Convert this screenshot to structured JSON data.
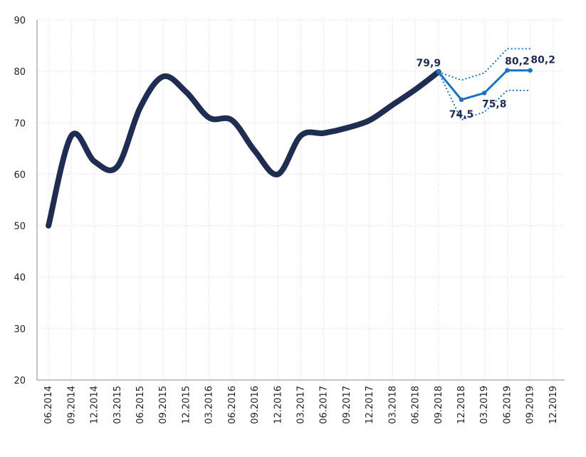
{
  "chart_data": {
    "type": "line",
    "title": "",
    "xlabel": "",
    "ylabel": "",
    "ylim": [
      20,
      90
    ],
    "yticks": [
      20,
      30,
      40,
      50,
      60,
      70,
      80,
      90
    ],
    "grid": true,
    "categories": [
      "06.2014",
      "09.2014",
      "12.2014",
      "03.2015",
      "06.2015",
      "09.2015",
      "12.2015",
      "03.2016",
      "06.2016",
      "09.2016",
      "12.2016",
      "03.2017",
      "06.2017",
      "09.2017",
      "12.2017",
      "03.2018",
      "06.2018",
      "09.2018",
      "12.2018",
      "03.2019",
      "06.2019",
      "09.2019",
      "12.2019"
    ],
    "series": [
      {
        "role": "actual",
        "color": "#1f2d52",
        "style": "thick-smooth",
        "values": [
          50,
          67.5,
          62.5,
          61.5,
          73,
          79,
          76,
          71,
          70.5,
          64.5,
          60,
          67.5,
          68,
          69,
          70.5,
          73.5,
          76.5,
          79.9,
          null,
          null,
          null,
          null,
          null
        ]
      },
      {
        "role": "forecast",
        "color": "#1a73c2",
        "style": "solid-markers",
        "values": [
          null,
          null,
          null,
          null,
          null,
          null,
          null,
          null,
          null,
          null,
          null,
          null,
          null,
          null,
          null,
          null,
          null,
          79.9,
          74.5,
          75.8,
          80.2,
          80.2,
          null
        ]
      },
      {
        "role": "forecast-upper",
        "color": "#1a73c2",
        "style": "dotted",
        "values": [
          null,
          null,
          null,
          null,
          null,
          null,
          null,
          null,
          null,
          null,
          null,
          null,
          null,
          null,
          null,
          null,
          null,
          79.9,
          78.3,
          79.7,
          84.4,
          84.4,
          null
        ]
      },
      {
        "role": "forecast-lower",
        "color": "#1a73c2",
        "style": "dotted",
        "values": [
          null,
          null,
          null,
          null,
          null,
          null,
          null,
          null,
          null,
          null,
          null,
          null,
          null,
          null,
          null,
          null,
          null,
          79.9,
          70.6,
          72.1,
          76.3,
          76.3,
          null
        ]
      }
    ],
    "data_labels": [
      {
        "category": "09.2018",
        "value": 79.9,
        "text": "79,9"
      },
      {
        "category": "12.2018",
        "value": 74.5,
        "text": "74,5"
      },
      {
        "category": "03.2019",
        "value": 75.8,
        "text": "75,8"
      },
      {
        "category": "06.2019",
        "value": 80.2,
        "text": "80,2"
      },
      {
        "category": "09.2019",
        "value": 80.2,
        "text": "80,2"
      }
    ]
  }
}
